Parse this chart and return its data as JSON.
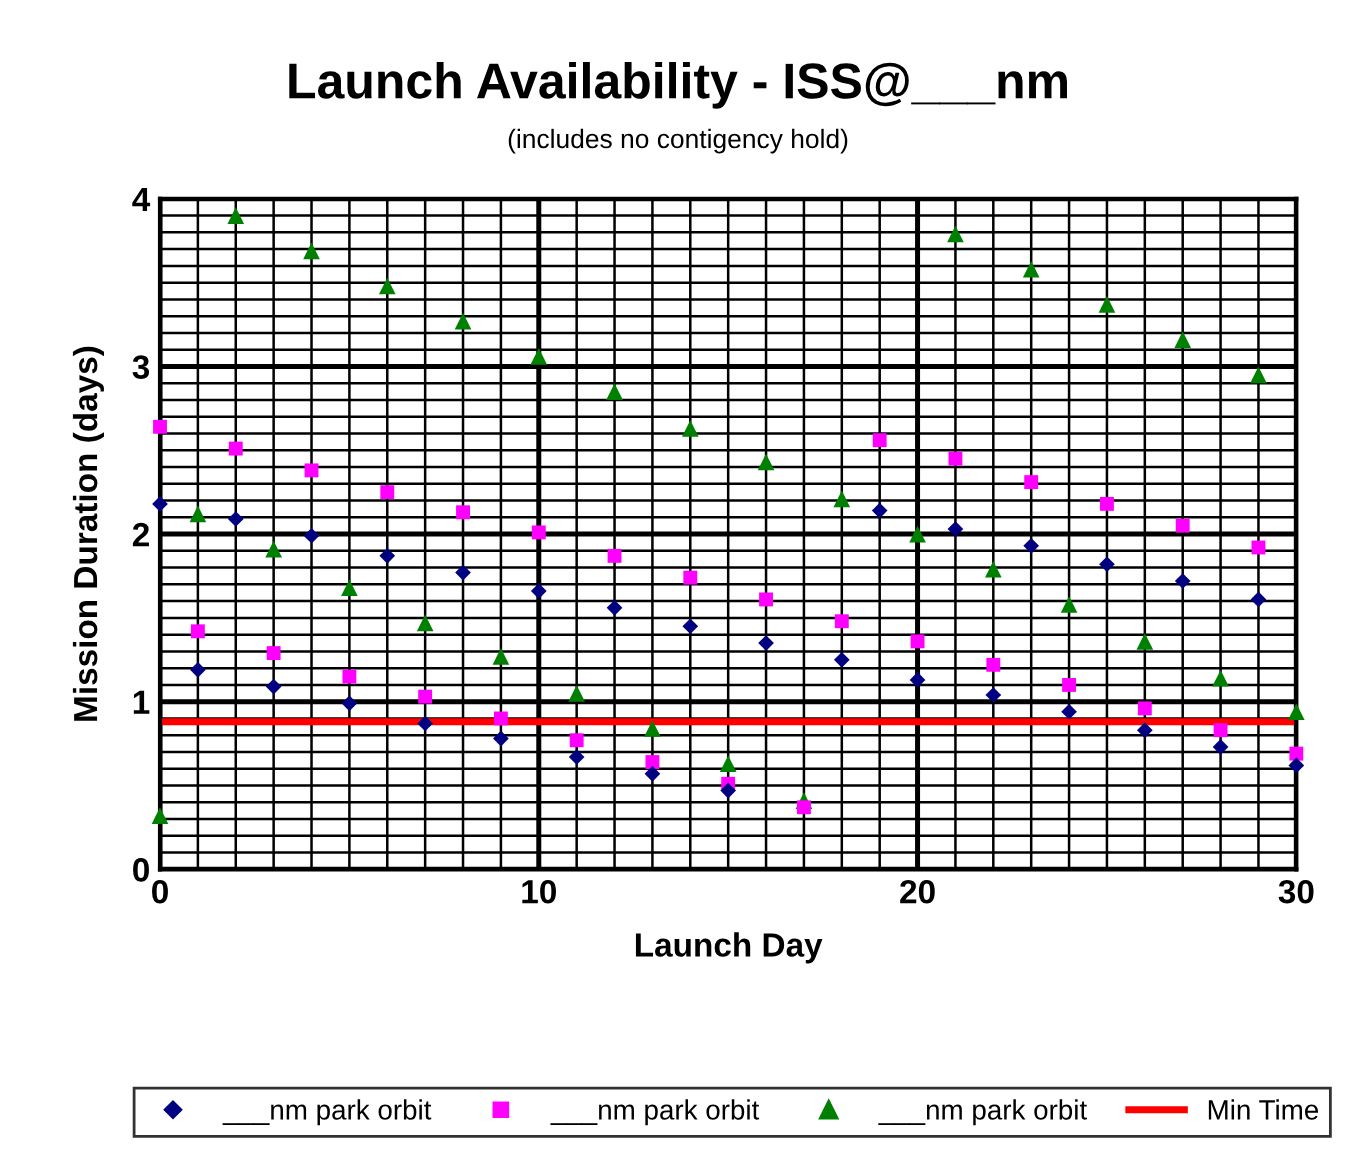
{
  "chart_data": {
    "type": "scatter",
    "title": "Launch Availability - ISS@___nm",
    "subtitle": "(includes no contigency hold)",
    "xlabel": "Launch Day",
    "ylabel": "Mission Duration (days)",
    "x": [
      0,
      1,
      2,
      3,
      4,
      5,
      6,
      7,
      8,
      9,
      10,
      11,
      12,
      13,
      14,
      15,
      16,
      17,
      18,
      19,
      20,
      21,
      22,
      23,
      24,
      25,
      26,
      27,
      28,
      29,
      30
    ],
    "series": [
      {
        "name": "___nm park orbit",
        "color": "#000080",
        "marker": "diamond",
        "values": [
          2.18,
          1.19,
          2.09,
          1.09,
          1.99,
          0.99,
          1.87,
          0.87,
          1.77,
          0.78,
          1.66,
          0.67,
          1.56,
          0.57,
          1.45,
          0.47,
          1.35,
          null,
          1.25,
          2.14,
          1.13,
          2.03,
          1.04,
          1.93,
          0.94,
          1.82,
          0.83,
          1.72,
          0.73,
          1.61,
          0.62
        ]
      },
      {
        "name": "___nm park orbit",
        "color": "#ff00ff",
        "marker": "square",
        "values": [
          2.64,
          1.42,
          2.51,
          1.29,
          2.38,
          1.15,
          2.25,
          1.03,
          2.13,
          0.9,
          2.01,
          0.77,
          1.87,
          0.64,
          1.74,
          0.51,
          1.61,
          0.37,
          1.48,
          2.56,
          1.36,
          2.45,
          1.22,
          2.31,
          1.1,
          2.18,
          0.96,
          2.05,
          0.83,
          1.92,
          0.69
        ]
      },
      {
        "name": "___nm park orbit",
        "color": "#008000",
        "marker": "triangle",
        "values": [
          0.32,
          2.12,
          3.9,
          1.91,
          3.69,
          1.68,
          3.48,
          1.47,
          3.27,
          1.27,
          3.06,
          1.05,
          2.85,
          0.84,
          2.63,
          0.63,
          2.43,
          0.41,
          2.21,
          null,
          2.0,
          3.79,
          1.79,
          3.58,
          1.58,
          3.37,
          1.36,
          3.16,
          1.14,
          2.95,
          0.94
        ]
      }
    ],
    "ref_lines": [
      {
        "axis": "y",
        "value": 0.88,
        "label": "Min Time",
        "color": "#ff0000"
      }
    ],
    "xlim": [
      0,
      30
    ],
    "ylim": [
      0,
      4
    ],
    "xticks": [
      0,
      10,
      20,
      30
    ],
    "yticks": [
      0,
      1,
      2,
      3,
      4
    ],
    "grid": true,
    "legend": "bottom"
  }
}
